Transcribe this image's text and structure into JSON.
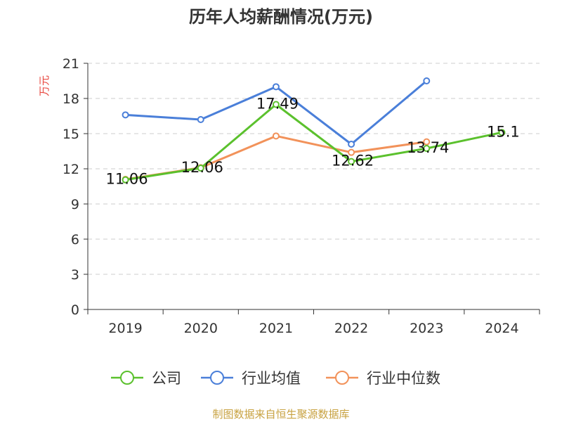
{
  "chart_data": {
    "type": "line",
    "title": "历年人均薪酬情况(万元)",
    "ylabel": "万元",
    "ylim": [
      0,
      21
    ],
    "yticks": [
      0,
      3,
      6,
      9,
      12,
      15,
      18,
      21
    ],
    "categories": [
      "2019",
      "2020",
      "2021",
      "2022",
      "2023",
      "2024"
    ],
    "grid": "horizontal-dashed",
    "legend_position": "bottom",
    "series": [
      {
        "name": "公司",
        "color": "#5bc12d",
        "values": [
          11.06,
          12.06,
          17.49,
          12.62,
          13.74,
          15.1
        ],
        "labels": [
          "11.06",
          "12.06",
          "17.49",
          "12.62",
          "13.74",
          "15.1"
        ]
      },
      {
        "name": "行业均值",
        "color": "#4a7fd9",
        "values": [
          16.6,
          16.2,
          19.0,
          14.1,
          19.5,
          null
        ]
      },
      {
        "name": "行业中位数",
        "color": "#f2925a",
        "values": [
          11.1,
          12.1,
          14.8,
          13.4,
          14.3,
          null
        ]
      }
    ]
  },
  "footer": {
    "source": "制图数据来自恒生聚源数据库"
  }
}
